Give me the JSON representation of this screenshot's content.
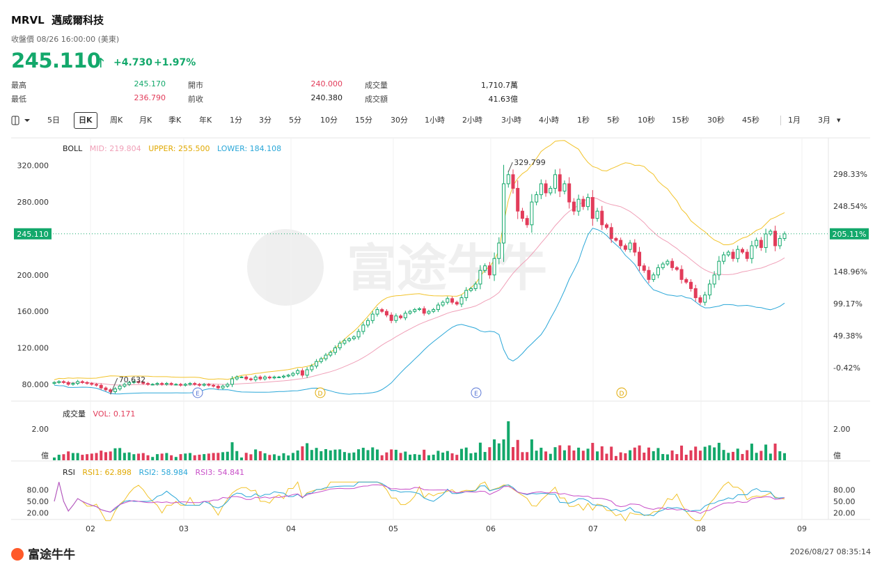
{
  "header": {
    "ticker": "MRVL",
    "name": "邁威爾科技",
    "close_label": "收盤價 08/26 16:00:00 (美東)",
    "price": "245.110",
    "change": "+4.730",
    "change_pct": "+1.97%"
  },
  "stats": {
    "high_label": "最高",
    "high": "245.170",
    "low_label": "最低",
    "low": "236.790",
    "open_label": "開市",
    "open": "240.000",
    "prev_label": "前收",
    "prev": "240.380",
    "vol_label": "成交量",
    "vol": "1,710.7萬",
    "amt_label": "成交額",
    "amt": "41.63億"
  },
  "toolbar": {
    "items": [
      "5日",
      "日K",
      "周K",
      "月K",
      "季K",
      "年K",
      "1分",
      "3分",
      "5分",
      "10分",
      "15分",
      "30分",
      "1小時",
      "2小時",
      "3小時",
      "4小時",
      "1秒",
      "5秒",
      "10秒",
      "15秒",
      "30秒",
      "45秒",
      "1月",
      "3月"
    ],
    "active": "日K"
  },
  "boll": {
    "label": "BOLL",
    "mid": "MID: 219.804",
    "upper": "UPPER: 255.500",
    "lower": "LOWER: 184.108"
  },
  "volume": {
    "label": "成交量",
    "value": "VOL: 0.171"
  },
  "rsi": {
    "label": "RSI",
    "rsi1": "RSI1: 62.898",
    "rsi2": "RSI2: 58.984",
    "rsi3": "RSI3: 54.841"
  },
  "footer": {
    "brand": "富途牛牛",
    "timestamp": "2026/08/27 08:35:14",
    "watermark": "富途牛牛"
  },
  "colors": {
    "up": "#13a86b",
    "down": "#e23c5a",
    "mid": "#f0a0b8",
    "upper": "#f2c32a",
    "lower": "#2aa7d8"
  },
  "chart_data": {
    "type": "candlestick",
    "price_axis": {
      "ticks": [
        80,
        120,
        160,
        200,
        240,
        280,
        320
      ],
      "tick_labels": [
        "80.000",
        "120.000",
        "160.000",
        "200.000",
        "",
        "280.000",
        "320.000"
      ]
    },
    "pct_axis": {
      "tick_labels": [
        "298.33%",
        "248.54%",
        "205.11%",
        "148.96%",
        "99.17%",
        "49.38%",
        "-0.42%"
      ]
    },
    "current_price": 245.11,
    "current_price_label": "245.110",
    "current_pct_label": "205.11%",
    "annotations": [
      {
        "text": "329.799"
      },
      {
        "text": "70.632"
      }
    ],
    "event_markers": [
      "E",
      "D",
      "E",
      "D"
    ],
    "months": [
      "02",
      "03",
      "04",
      "05",
      "06",
      "07",
      "08",
      "09"
    ],
    "volume_axis": {
      "tick_labels": [
        "2.00",
        "億"
      ]
    },
    "rsi_axis": {
      "tick_labels": [
        "80.00",
        "50.00",
        "20.00"
      ]
    },
    "close_series": [
      82,
      83,
      82,
      80,
      81,
      83,
      82,
      81,
      80,
      79,
      76,
      74,
      72,
      75,
      78,
      80,
      82,
      83,
      82,
      81,
      80,
      80,
      81,
      80,
      81,
      80,
      80,
      79,
      80,
      81,
      80,
      79,
      80,
      79,
      78,
      76,
      78,
      80,
      86,
      88,
      88,
      86,
      85,
      88,
      86,
      88,
      87,
      88,
      88,
      89,
      90,
      92,
      95,
      90,
      96,
      100,
      105,
      108,
      112,
      115,
      120,
      125,
      128,
      130,
      132,
      138,
      145,
      150,
      157,
      162,
      160,
      156,
      150,
      155,
      153,
      158,
      160,
      162,
      163,
      158,
      160,
      162,
      167,
      170,
      174,
      170,
      168,
      175,
      183,
      185,
      190,
      205,
      210,
      200,
      218,
      235,
      300,
      310,
      295,
      270,
      262,
      255,
      280,
      288,
      300,
      290,
      295,
      310,
      292,
      300,
      280,
      270,
      283,
      275,
      285,
      262,
      270,
      255,
      252,
      240,
      238,
      232,
      228,
      235,
      225,
      210,
      205,
      195,
      200,
      208,
      212,
      215,
      208,
      206,
      195,
      192,
      185,
      175,
      170,
      178,
      190,
      200,
      215,
      222,
      225,
      218,
      228,
      225,
      218,
      232,
      238,
      230,
      245,
      248,
      232,
      240,
      245
    ]
  }
}
